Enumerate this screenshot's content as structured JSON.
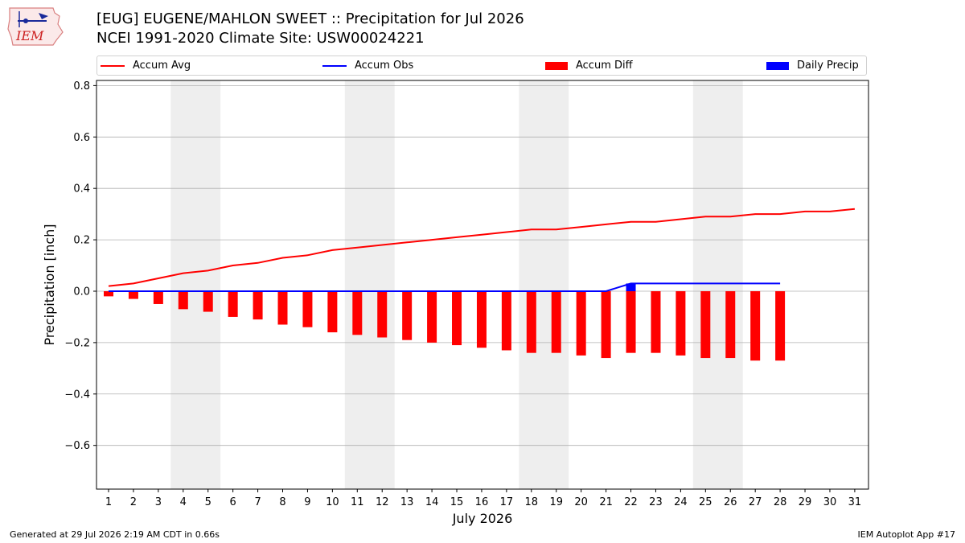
{
  "header": {
    "logo_text": "IEM",
    "title_line1": "[EUG] EUGENE/MAHLON SWEET :: Precipitation for Jul 2026",
    "title_line2": "NCEI 1991-2020 Climate Site: USW00024221"
  },
  "legend": {
    "accum_avg": "Accum Avg",
    "accum_obs": "Accum Obs",
    "accum_diff": "Accum Diff",
    "daily_precip": "Daily Precip"
  },
  "colors": {
    "accum_avg": "#ff0000",
    "accum_obs": "#0000ff",
    "accum_diff": "#ff0000",
    "daily_precip": "#0000ff",
    "weekend_shade": "#eeeeee",
    "grid": "#b0b0b0"
  },
  "chart_data": {
    "type": "bar",
    "xlabel": "July 2026",
    "ylabel": "Precipitation [inch]",
    "ylim": [
      -0.77,
      0.82
    ],
    "yticks": [
      0.8,
      0.6,
      0.4,
      0.2,
      0.0,
      -0.2,
      -0.4,
      -0.6
    ],
    "ytick_labels": [
      "0.8",
      "0.6",
      "0.4",
      "0.2",
      "0.0",
      "−0.2",
      "−0.4",
      "−0.6"
    ],
    "grid": "horizontal",
    "legend_position": "top",
    "days": [
      1,
      2,
      3,
      4,
      5,
      6,
      7,
      8,
      9,
      10,
      11,
      12,
      13,
      14,
      15,
      16,
      17,
      18,
      19,
      20,
      21,
      22,
      23,
      24,
      25,
      26,
      27,
      28,
      29,
      30,
      31
    ],
    "shaded_day_ranges": [
      [
        4,
        5
      ],
      [
        11,
        12
      ],
      [
        18,
        19
      ],
      [
        25,
        26
      ]
    ],
    "series": [
      {
        "name": "Accum Avg",
        "type": "line",
        "values": [
          0.02,
          0.03,
          0.05,
          0.07,
          0.08,
          0.1,
          0.11,
          0.13,
          0.14,
          0.16,
          0.17,
          0.18,
          0.19,
          0.2,
          0.21,
          0.22,
          0.23,
          0.24,
          0.24,
          0.25,
          0.26,
          0.27,
          0.27,
          0.28,
          0.29,
          0.29,
          0.3,
          0.3,
          0.31,
          0.31,
          0.32
        ]
      },
      {
        "name": "Accum Obs",
        "type": "line",
        "values": [
          0,
          0,
          0,
          0,
          0,
          0,
          0,
          0,
          0,
          0,
          0,
          0,
          0,
          0,
          0,
          0,
          0,
          0,
          0,
          0,
          0,
          0.03,
          0.03,
          0.03,
          0.03,
          0.03,
          0.03,
          0.03
        ]
      },
      {
        "name": "Accum Diff",
        "type": "bar",
        "values": [
          -0.02,
          -0.03,
          -0.05,
          -0.07,
          -0.08,
          -0.1,
          -0.11,
          -0.13,
          -0.14,
          -0.16,
          -0.17,
          -0.18,
          -0.19,
          -0.2,
          -0.21,
          -0.22,
          -0.23,
          -0.24,
          -0.24,
          -0.25,
          -0.26,
          -0.24,
          -0.24,
          -0.25,
          -0.26,
          -0.26,
          -0.27,
          -0.27
        ]
      },
      {
        "name": "Daily Precip",
        "type": "bar",
        "values": [
          0,
          0,
          0,
          0,
          0,
          0,
          0,
          0,
          0,
          0,
          0,
          0,
          0,
          0,
          0,
          0,
          0,
          0,
          0,
          0,
          0,
          0.03,
          0,
          0,
          0,
          0,
          0,
          0
        ]
      }
    ]
  },
  "footer": {
    "left": "Generated at 29 Jul 2026 2:19 AM CDT in 0.66s",
    "right": "IEM Autoplot App #17"
  }
}
